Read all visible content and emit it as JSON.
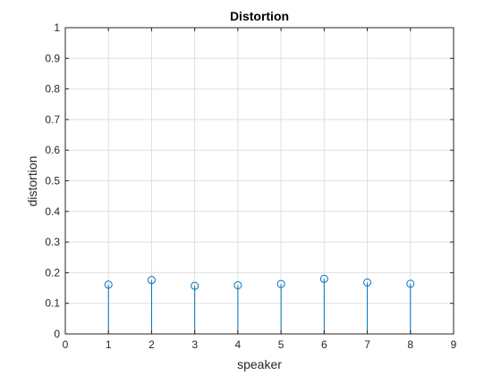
{
  "chart_data": {
    "type": "stem",
    "title": "Distortion",
    "xlabel": "speaker",
    "ylabel": "distortion",
    "xlim": [
      0,
      9
    ],
    "ylim": [
      0,
      1
    ],
    "xticks": [
      "0",
      "1",
      "2",
      "3",
      "4",
      "5",
      "6",
      "7",
      "8",
      "9"
    ],
    "yticks": [
      "0",
      "0.1",
      "0.2",
      "0.3",
      "0.4",
      "0.5",
      "0.6",
      "0.7",
      "0.8",
      "0.9",
      "1"
    ],
    "grid": true,
    "series": [
      {
        "x": [
          1,
          2,
          3,
          4,
          5,
          6,
          7,
          8
        ],
        "values": [
          0.161,
          0.176,
          0.157,
          0.159,
          0.163,
          0.18,
          0.168,
          0.164
        ],
        "color": "#0072bd"
      }
    ]
  }
}
